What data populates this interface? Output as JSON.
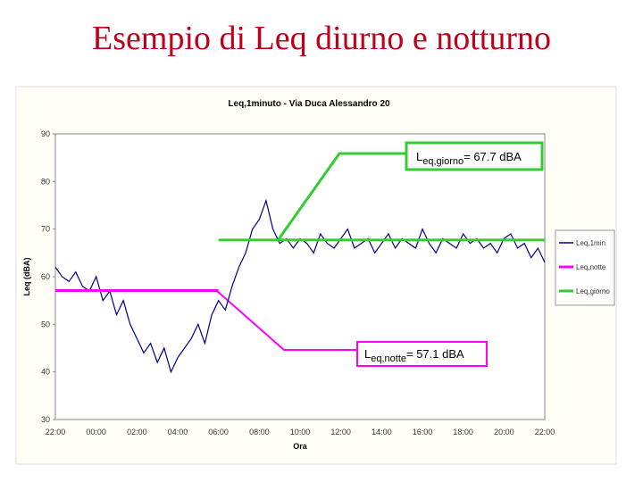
{
  "slide_title": "Esempio di Leq diurno e notturno",
  "chart_data": {
    "type": "line",
    "title": "Leq,1minuto - Via Duca Alessandro 20",
    "xlabel": "Ora",
    "ylabel": "Leq (dBA)",
    "ylim": [
      30,
      90
    ],
    "yticks": [
      30,
      40,
      50,
      60,
      70,
      80,
      90
    ],
    "categories": [
      "22:00",
      null,
      null,
      null,
      null,
      null,
      "00:00",
      null,
      null,
      null,
      null,
      null,
      "02:00",
      null,
      null,
      null,
      null,
      null,
      "04:00",
      null,
      null,
      null,
      null,
      null,
      "06:00",
      null,
      null,
      null,
      null,
      null,
      "08:00",
      null,
      null,
      null,
      null,
      null,
      "10:00",
      null,
      null,
      null,
      null,
      null,
      "12:00",
      null,
      null,
      null,
      null,
      null,
      "14:00",
      null,
      null,
      null,
      null,
      null,
      "16:00",
      null,
      null,
      null,
      null,
      null,
      "18:00",
      null,
      null,
      null,
      null,
      null,
      "20:00",
      null,
      null,
      null,
      null,
      null,
      "22:00"
    ],
    "series": [
      {
        "name": "Leq,1min",
        "color": "#000080",
        "values": [
          62,
          60,
          59,
          61,
          58,
          57,
          60,
          55,
          57,
          52,
          55,
          50,
          47,
          44,
          46,
          42,
          45,
          40,
          43,
          45,
          47,
          50,
          46,
          52,
          55,
          53,
          58,
          62,
          65,
          70,
          72,
          76,
          70,
          67,
          68,
          66,
          68,
          67,
          65,
          69,
          67,
          66,
          68,
          70,
          66,
          67,
          68,
          65,
          67,
          69,
          66,
          68,
          67,
          66,
          70,
          67,
          65,
          68,
          67,
          66,
          69,
          67,
          68,
          66,
          67,
          65,
          68,
          69,
          66,
          67,
          64,
          66,
          63
        ]
      },
      {
        "name": "Leq,notte",
        "color": "#ff00ff",
        "values": [
          57.1,
          57.1,
          57.1,
          57.1,
          57.1,
          57.1,
          57.1,
          57.1,
          57.1,
          57.1,
          57.1,
          57.1,
          57.1,
          57.1,
          57.1,
          57.1,
          57.1,
          57.1,
          57.1,
          57.1,
          57.1,
          57.1,
          57.1,
          57.1,
          57.1,
          null,
          null,
          null,
          null,
          null,
          null,
          null,
          null,
          null,
          null,
          null,
          null,
          null,
          null,
          null,
          null,
          null,
          null,
          null,
          null,
          null,
          null,
          null,
          null,
          null,
          null,
          null,
          null,
          null,
          null,
          null,
          null,
          null,
          null,
          null,
          null,
          null,
          null,
          null,
          null,
          null,
          null,
          null,
          null,
          null,
          null,
          null,
          null
        ]
      },
      {
        "name": "Leq,giorno",
        "color": "#33cc33",
        "values": [
          null,
          null,
          null,
          null,
          null,
          null,
          null,
          null,
          null,
          null,
          null,
          null,
          null,
          null,
          null,
          null,
          null,
          null,
          null,
          null,
          null,
          null,
          null,
          null,
          67.7,
          67.7,
          67.7,
          67.7,
          67.7,
          67.7,
          67.7,
          67.7,
          67.7,
          67.7,
          67.7,
          67.7,
          67.7,
          67.7,
          67.7,
          67.7,
          67.7,
          67.7,
          67.7,
          67.7,
          67.7,
          67.7,
          67.7,
          67.7,
          67.7,
          67.7,
          67.7,
          67.7,
          67.7,
          67.7,
          67.7,
          67.7,
          67.7,
          67.7,
          67.7,
          67.7,
          67.7,
          67.7,
          67.7,
          67.7,
          67.7,
          67.7,
          67.7,
          67.7,
          67.7,
          67.7,
          67.7,
          67.7,
          67.7
        ]
      }
    ],
    "annotations": [
      {
        "main": "L",
        "sub": "eq,giorno",
        "rest": "= 67.7 dBA"
      },
      {
        "main": "L",
        "sub": "eq,notte",
        "rest": "= 57.1 dBA"
      }
    ]
  }
}
